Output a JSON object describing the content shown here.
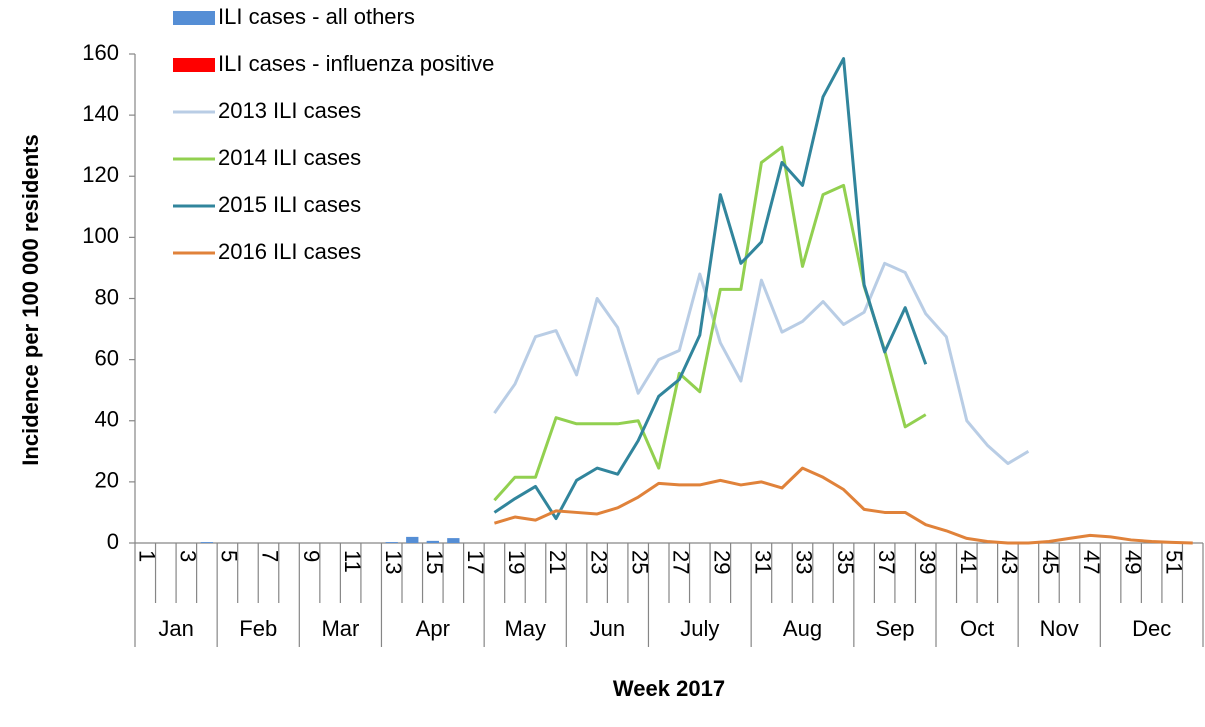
{
  "chart_data": {
    "type": "combo",
    "y_label": "Incidence per 100 000 residents",
    "x_label": "Week 2017",
    "categories": [
      1,
      null,
      3,
      null,
      5,
      null,
      7,
      null,
      9,
      null,
      11,
      null,
      13,
      null,
      15,
      null,
      17,
      null,
      19,
      null,
      21,
      null,
      23,
      null,
      25,
      null,
      27,
      null,
      29,
      null,
      31,
      null,
      33,
      null,
      35,
      null,
      37,
      null,
      39,
      null,
      41,
      null,
      43,
      null,
      45,
      null,
      47,
      null,
      49,
      null,
      51,
      null
    ],
    "months": [
      "Jan",
      null,
      null,
      null,
      "Feb",
      null,
      null,
      null,
      "Mar",
      null,
      null,
      null,
      "Apr",
      null,
      null,
      null,
      null,
      "May",
      null,
      null,
      null,
      "Jun",
      null,
      null,
      null,
      "July",
      null,
      null,
      null,
      null,
      "Aug",
      null,
      null,
      null,
      null,
      "Sep",
      null,
      null,
      null,
      "Oct",
      null,
      null,
      null,
      "Nov",
      null,
      null,
      null,
      "Dec",
      null,
      null,
      null,
      null
    ],
    "ylim": [
      0,
      160
    ],
    "yticks": [
      0,
      20,
      40,
      60,
      80,
      100,
      120,
      140,
      160
    ],
    "series": [
      {
        "name": "ILI cases - all others",
        "type": "bar",
        "color": "#558ed5",
        "values": [
          0,
          0,
          0,
          0.3,
          0,
          0,
          0,
          0,
          0,
          0,
          0,
          0,
          0.3,
          2,
          0.7,
          1.6,
          0,
          null,
          null,
          null,
          null,
          null,
          null,
          null,
          null,
          null,
          null,
          null,
          null,
          null,
          null,
          null,
          null,
          null,
          null,
          null,
          null,
          null,
          null,
          null,
          null,
          null,
          null,
          null,
          null,
          null,
          null,
          null,
          null,
          null,
          null,
          null
        ]
      },
      {
        "name": "ILI cases - influenza positive",
        "type": "bar",
        "color": "#ff0000",
        "values": [
          0,
          0,
          0,
          0,
          0,
          0,
          0,
          0,
          0,
          0,
          0,
          0,
          0,
          0,
          0,
          0,
          0,
          null,
          null,
          null,
          null,
          null,
          null,
          null,
          null,
          null,
          null,
          null,
          null,
          null,
          null,
          null,
          null,
          null,
          null,
          null,
          null,
          null,
          null,
          null,
          null,
          null,
          null,
          null,
          null,
          null,
          null,
          null,
          null,
          null,
          null,
          null
        ]
      },
      {
        "name": "2013 ILI cases",
        "type": "line",
        "color": "#b9cde5",
        "values": [
          null,
          null,
          null,
          null,
          null,
          null,
          null,
          null,
          null,
          null,
          null,
          null,
          null,
          null,
          null,
          null,
          null,
          42.5,
          52,
          67.5,
          69.5,
          55,
          80,
          70.5,
          49,
          60,
          63,
          88,
          65.5,
          53,
          86,
          69,
          72.5,
          79,
          71.5,
          75.5,
          91.5,
          88.5,
          75,
          67.5,
          40,
          32,
          26,
          30,
          null,
          null,
          null,
          null,
          null,
          null,
          null,
          null
        ]
      },
      {
        "name": "2014 ILI cases",
        "type": "line",
        "color": "#92d050",
        "values": [
          null,
          null,
          null,
          null,
          null,
          null,
          null,
          null,
          null,
          null,
          null,
          null,
          null,
          null,
          null,
          null,
          null,
          14,
          21.5,
          21.5,
          41,
          39,
          39,
          39,
          40,
          24.5,
          55.5,
          49.5,
          83,
          83,
          124.5,
          129.5,
          90.5,
          114,
          117,
          84,
          63,
          38,
          42,
          null,
          null,
          null,
          null,
          null,
          null,
          null,
          null,
          null,
          null,
          null,
          null,
          null
        ]
      },
      {
        "name": "2015 ILI cases",
        "type": "line",
        "color": "#31859c",
        "values": [
          null,
          null,
          null,
          null,
          null,
          null,
          null,
          null,
          null,
          null,
          null,
          null,
          null,
          null,
          null,
          null,
          null,
          10,
          14.5,
          18.5,
          8,
          20.5,
          24.5,
          22.5,
          33.5,
          48,
          53.5,
          68,
          114,
          91.5,
          98.5,
          124.5,
          117,
          146,
          158.5,
          84.5,
          62.5,
          77,
          58.5,
          null,
          null,
          null,
          null,
          null,
          null,
          null,
          null,
          null,
          null,
          null,
          null,
          null
        ]
      },
      {
        "name": "2016 ILI cases",
        "type": "line",
        "color": "#e0823a",
        "values": [
          null,
          null,
          null,
          null,
          null,
          null,
          null,
          null,
          null,
          null,
          null,
          null,
          null,
          null,
          null,
          null,
          null,
          6.5,
          8.5,
          7.5,
          10.5,
          10,
          9.5,
          11.5,
          15,
          19.5,
          19,
          19,
          20.5,
          19,
          20,
          18,
          24.5,
          21.5,
          17.5,
          11,
          10,
          10,
          6,
          4,
          1.5,
          0.5,
          0,
          0,
          0.5,
          1.5,
          2.5,
          2,
          1,
          0.5,
          0.2,
          0
        ]
      }
    ]
  }
}
